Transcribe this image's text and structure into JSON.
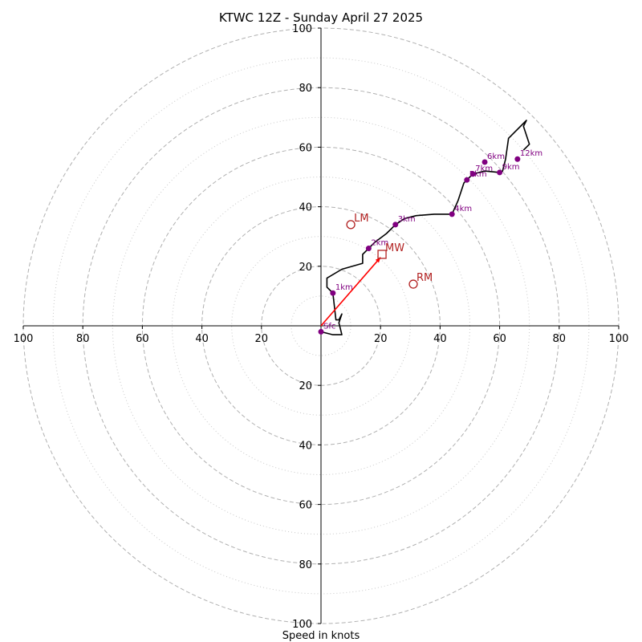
{
  "chart_data": {
    "type": "hodograph",
    "title": "KTWC 12Z - Sunday April 27 2025",
    "xlabel": "Speed in knots",
    "units": "knots",
    "range": [
      -100,
      100
    ],
    "rings_major": [
      20,
      40,
      60,
      80,
      100
    ],
    "rings_minor": [
      10,
      30,
      50,
      70,
      90
    ],
    "tick_labels": [
      "100",
      "80",
      "60",
      "40",
      "20",
      "20",
      "40",
      "60",
      "80",
      "100"
    ],
    "y_tick_labels": [
      "100",
      "80",
      "60",
      "40",
      "20",
      "20",
      "40",
      "60",
      "80",
      "100"
    ],
    "colors": {
      "trace": "#000000",
      "height_points": "#800080",
      "motion": "#b22222",
      "mean_wind_arrow": "#ff0000",
      "grid": "#b0b0b0"
    },
    "trace": [
      [
        0,
        -2
      ],
      [
        4,
        -3
      ],
      [
        7,
        -3
      ],
      [
        6,
        1
      ],
      [
        7,
        4
      ],
      [
        6,
        2
      ],
      [
        5,
        2
      ],
      [
        4,
        11
      ],
      [
        3,
        12
      ],
      [
        2,
        13
      ],
      [
        2,
        16
      ],
      [
        7,
        19
      ],
      [
        14,
        21
      ],
      [
        14,
        24
      ],
      [
        15,
        25
      ],
      [
        16,
        26
      ],
      [
        18,
        28
      ],
      [
        22,
        31
      ],
      [
        25,
        34
      ],
      [
        28,
        36
      ],
      [
        32,
        37
      ],
      [
        38,
        37.5
      ],
      [
        44,
        37.5
      ],
      [
        46,
        42
      ],
      [
        48,
        48
      ],
      [
        49,
        49
      ],
      [
        51,
        51
      ],
      [
        55,
        52
      ],
      [
        60,
        51.5
      ],
      [
        61,
        52
      ],
      [
        62,
        56
      ],
      [
        63,
        63
      ],
      [
        69,
        69
      ],
      [
        68,
        67
      ],
      [
        70,
        61
      ],
      [
        69,
        60
      ],
      [
        68,
        59
      ]
    ],
    "height_points": [
      {
        "label": "Sfc",
        "u": 0,
        "v": -2
      },
      {
        "label": "1km",
        "u": 4,
        "v": 11
      },
      {
        "label": "2km",
        "u": 16,
        "v": 26
      },
      {
        "label": "3km",
        "u": 25,
        "v": 34
      },
      {
        "label": "4km",
        "u": 44,
        "v": 37.5
      },
      {
        "label": "5km",
        "u": 49,
        "v": 49
      },
      {
        "label": "6km",
        "u": 55,
        "v": 55
      },
      {
        "label": "7km",
        "u": 51,
        "v": 51
      },
      {
        "label": "9km",
        "u": 60,
        "v": 51.5
      },
      {
        "label": "12km",
        "u": 66,
        "v": 56
      }
    ],
    "storm_motion": [
      {
        "label": "LM",
        "u": 10,
        "v": 34,
        "marker": "circle"
      },
      {
        "label": "MW",
        "u": 20.5,
        "v": 24,
        "marker": "square"
      },
      {
        "label": "RM",
        "u": 31,
        "v": 14,
        "marker": "circle"
      }
    ],
    "mean_wind_arrow": {
      "from": [
        0,
        0
      ],
      "to": [
        20,
        23
      ]
    }
  }
}
